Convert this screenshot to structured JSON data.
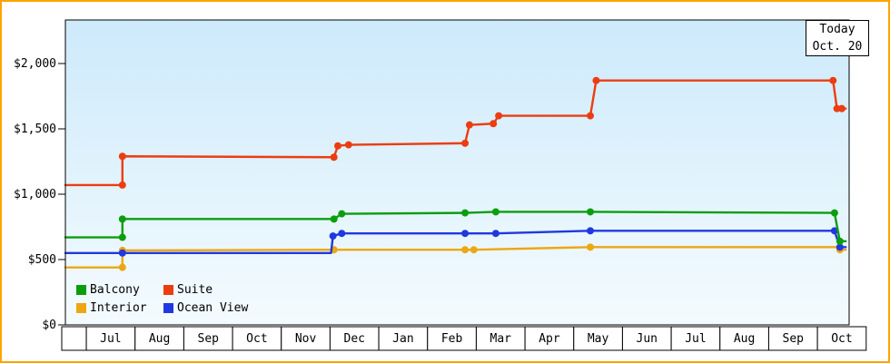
{
  "today_box": {
    "line1": "Today",
    "line2": "Oct. 20"
  },
  "legend": [
    {
      "label": "Balcony",
      "color": "#0a9e0e"
    },
    {
      "label": "Suite",
      "color": "#ec3d12"
    },
    {
      "label": "Interior",
      "color": "#eda712"
    },
    {
      "label": "Ocean View",
      "color": "#2038e0"
    }
  ],
  "frame": {
    "border_color": "#ffa400",
    "plot_bg_top": "#cdeafb",
    "plot_bg_bottom": "#f4fbfe"
  },
  "chart_data": {
    "type": "line",
    "title": "",
    "legend_position": "bottom-left",
    "grid": false,
    "x_axis": {
      "unit": "month",
      "labels": [
        "Jul",
        "Aug",
        "Sep",
        "Oct",
        "Nov",
        "Dec",
        "Jan",
        "Feb",
        "Mar",
        "Apr",
        "May",
        "Jun",
        "Jul",
        "Aug",
        "Sep",
        "Oct"
      ],
      "domain": [
        -0.93,
        15.15
      ],
      "note": "x = months; 0 = center of first Jul column; right edge = today (Oct. 20)"
    },
    "y_axis": {
      "ticks": [
        0,
        500,
        1000,
        1500,
        2000
      ],
      "tick_labels": [
        "$0",
        "$500",
        "$1,000",
        "$1,500",
        "$2,000"
      ]
    },
    "series": [
      {
        "name": "Interior",
        "color": "#eda712",
        "points": [
          [
            -0.93,
            440,
            0
          ],
          [
            0.24,
            440,
            1
          ],
          [
            0.24,
            570,
            1
          ],
          [
            4.58,
            575,
            1
          ],
          [
            7.27,
            575,
            1
          ],
          [
            7.45,
            575,
            1
          ],
          [
            9.84,
            595,
            1
          ],
          [
            14.88,
            595,
            0
          ],
          [
            14.96,
            575,
            1
          ],
          [
            15.08,
            575,
            0
          ]
        ]
      },
      {
        "name": "Ocean View",
        "color": "#2038e0",
        "points": [
          [
            -0.93,
            550,
            0
          ],
          [
            0.24,
            550,
            1
          ],
          [
            4.52,
            550,
            0
          ],
          [
            4.56,
            680,
            1
          ],
          [
            4.74,
            700,
            1
          ],
          [
            7.27,
            700,
            1
          ],
          [
            7.9,
            700,
            1
          ],
          [
            9.84,
            720,
            1
          ],
          [
            14.85,
            720,
            1
          ],
          [
            14.96,
            595,
            1
          ],
          [
            15.08,
            595,
            0
          ]
        ]
      },
      {
        "name": "Balcony",
        "color": "#0a9e0e",
        "points": [
          [
            -0.93,
            670,
            0
          ],
          [
            0.24,
            670,
            1
          ],
          [
            0.24,
            810,
            1
          ],
          [
            4.58,
            810,
            1
          ],
          [
            4.74,
            850,
            1
          ],
          [
            7.27,
            857,
            1
          ],
          [
            7.9,
            865,
            1
          ],
          [
            9.84,
            865,
            1
          ],
          [
            14.85,
            857,
            1
          ],
          [
            14.96,
            640,
            1
          ],
          [
            15.08,
            640,
            0
          ]
        ]
      },
      {
        "name": "Suite",
        "color": "#ec3d12",
        "points": [
          [
            -0.93,
            1070,
            0
          ],
          [
            0.24,
            1070,
            1
          ],
          [
            0.24,
            1290,
            1
          ],
          [
            4.58,
            1283,
            1
          ],
          [
            4.66,
            1370,
            1
          ],
          [
            4.88,
            1378,
            1
          ],
          [
            7.27,
            1390,
            1
          ],
          [
            7.36,
            1530,
            1
          ],
          [
            7.85,
            1540,
            1
          ],
          [
            7.96,
            1600,
            1
          ],
          [
            9.84,
            1600,
            1
          ],
          [
            9.96,
            1870,
            1
          ],
          [
            14.82,
            1870,
            1
          ],
          [
            14.9,
            1655,
            1
          ],
          [
            15.0,
            1655,
            1
          ],
          [
            15.08,
            1655,
            0
          ]
        ]
      }
    ]
  }
}
